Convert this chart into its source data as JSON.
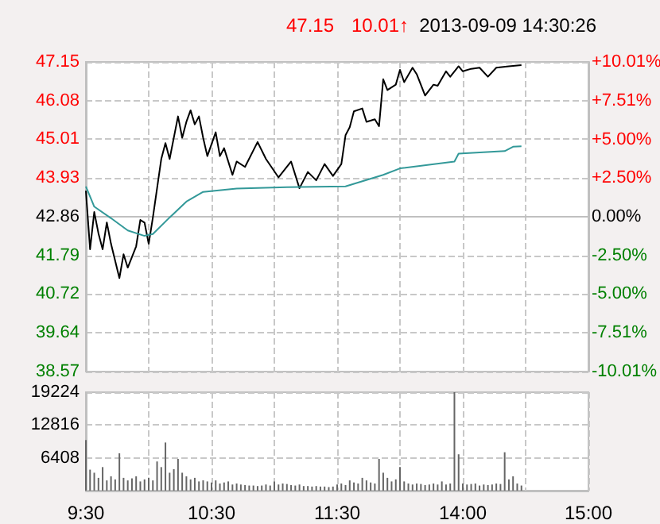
{
  "chart_data": [
    {
      "type": "line",
      "annotations": [
        "47.15",
        "10.01↑",
        "2013-09-09 14:30:26"
      ],
      "categories": [
        null,
        null,
        null,
        null,
        null,
        null,
        null,
        null,
        null,
        null,
        null,
        null,
        null,
        null,
        null,
        null,
        null,
        null,
        null,
        null,
        null,
        null,
        null,
        null,
        null,
        null,
        null,
        null,
        null,
        null,
        null,
        null,
        null,
        null,
        null,
        null,
        null,
        null,
        null,
        null,
        null,
        null,
        null,
        null,
        null,
        null,
        null,
        null,
        null,
        null,
        null,
        null,
        null,
        null,
        null,
        null,
        null,
        null,
        null,
        null,
        null,
        null,
        null,
        null,
        null,
        null,
        null,
        null,
        null,
        null,
        null,
        null,
        null,
        null,
        null,
        null,
        null,
        null,
        null,
        null,
        null,
        null,
        null,
        null,
        null,
        null,
        null,
        null,
        null,
        null,
        null,
        null,
        null,
        null,
        null,
        null,
        null,
        null,
        null,
        null,
        null,
        null,
        null,
        null,
        null,
        null,
        null,
        null,
        null,
        null,
        null,
        null,
        null,
        null,
        null,
        null,
        null,
        null,
        null,
        null,
        null
      ],
      "ylim": [
        38.57,
        47.15
      ],
      "yticks": [
        38.57,
        39.64,
        40.72,
        41.79,
        42.86,
        43.93,
        45.01,
        46.08,
        47.15
      ],
      "y2lim": [
        -10.01,
        10.01
      ],
      "y2ticks": [
        {
          "value": -10.01,
          "label": "-10.01%"
        },
        {
          "value": -7.51,
          "label": "-7.51%"
        },
        {
          "value": -5,
          "label": "-5.00%"
        },
        {
          "value": -2.5,
          "label": "-2.50%"
        },
        {
          "value": 0,
          "label": "0.00%"
        },
        {
          "value": 2.5,
          "label": "+2.50%"
        },
        {
          "value": 5,
          "label": "+5.00%"
        },
        {
          "value": 7.51,
          "label": "+7.51%"
        },
        {
          "value": 10.01,
          "label": "+10.01%"
        }
      ],
      "grid": true,
      "tick_labels": "y",
      "series": [
        {
          "color": "#000000",
          "values": [
            43.58,
            41.96,
            42.99,
            42.4,
            41.96,
            42.7,
            42.11,
            null,
            41.16,
            41.82,
            41.45,
            null,
            42.04,
            42.77,
            42.7,
            42.11,
            42.84,
            43.65,
            44.46,
            44.9,
            44.46,
            null,
            45.64,
            45.05,
            45.49,
            45.81,
            45.42,
            45.64,
            45.05,
            44.54,
            null,
            45.2,
            44.54,
            44.76,
            null,
            44.02,
            44.39,
            null,
            44.24,
            null,
            null,
            44.93,
            null,
            44.46,
            null,
            null,
            43.95,
            null,
            null,
            44.39,
            null,
            43.65,
            null,
            44.1,
            null,
            43.87,
            null,
            44.32,
            null,
            43.99,
            null,
            44.32,
            45.12,
            45.34,
            45.78,
            null,
            45.86,
            45.49,
            null,
            45.56,
            45.37,
            46.67,
            46.37,
            null,
            46.52,
            46.93,
            46.59,
            null,
            46.99,
            46.81,
            null,
            46.22,
            null,
            46.52,
            46.49,
            null,
            46.89,
            46.74,
            null,
            47.03,
            46.89,
            null,
            46.96,
            null,
            46.99,
            null,
            46.74,
            null,
            46.99,
            null,
            null,
            47.03,
            null,
            null,
            47.06,
            null,
            null,
            null,
            null,
            null,
            null,
            null,
            null,
            null,
            null,
            null,
            null,
            null,
            null,
            null,
            null
          ]
        },
        {
          "color": "#339999",
          "values": [
            43.7,
            null,
            43.14,
            null,
            null,
            null,
            42.82,
            null,
            null,
            null,
            42.48,
            null,
            null,
            null,
            42.33,
            null,
            42.38,
            null,
            null,
            null,
            42.84,
            null,
            null,
            null,
            43.28,
            null,
            null,
            null,
            43.55,
            null,
            null,
            null,
            null,
            null,
            null,
            null,
            43.64,
            null,
            null,
            null,
            null,
            null,
            null,
            null,
            null,
            null,
            null,
            null,
            43.68,
            null,
            null,
            null,
            null,
            null,
            null,
            null,
            null,
            null,
            null,
            null,
            null,
            null,
            43.7,
            null,
            null,
            null,
            null,
            null,
            null,
            null,
            null,
            44.02,
            null,
            null,
            null,
            44.2,
            null,
            null,
            null,
            null,
            null,
            null,
            null,
            null,
            null,
            null,
            null,
            null,
            44.39,
            44.61,
            null,
            null,
            null,
            null,
            null,
            null,
            null,
            null,
            null,
            null,
            44.68,
            null,
            44.8,
            null,
            44.81,
            null,
            null,
            null,
            null,
            null,
            null,
            null,
            null,
            null,
            null,
            null,
            null,
            null,
            null,
            null,
            null
          ]
        }
      ]
    },
    {
      "type": "bar",
      "color": "#666666",
      "categories": [
        "9:30",
        null,
        null,
        null,
        null,
        null,
        null,
        null,
        null,
        null,
        null,
        null,
        null,
        null,
        null,
        null,
        null,
        null,
        null,
        null,
        null,
        null,
        null,
        null,
        null,
        null,
        null,
        null,
        null,
        null,
        "10:30",
        null,
        null,
        null,
        null,
        null,
        null,
        null,
        null,
        null,
        null,
        null,
        null,
        null,
        null,
        null,
        null,
        null,
        null,
        null,
        null,
        null,
        null,
        null,
        null,
        null,
        null,
        null,
        null,
        null,
        "11:30",
        null,
        null,
        null,
        null,
        null,
        null,
        null,
        null,
        null,
        null,
        null,
        null,
        null,
        null,
        null,
        null,
        null,
        null,
        null,
        null,
        null,
        null,
        null,
        null,
        null,
        null,
        null,
        null,
        null,
        "14:00",
        null,
        null,
        null,
        null,
        null,
        null,
        null,
        null,
        null,
        null,
        null,
        null,
        null,
        null,
        null,
        null,
        null,
        null,
        null,
        null,
        null,
        null,
        null,
        null,
        null,
        null,
        null,
        null,
        null,
        "15:00"
      ],
      "ylim": [
        0,
        19224
      ],
      "yticks": [
        6408,
        12816,
        19224
      ],
      "grid": true,
      "values": [
        9900,
        4100,
        3500,
        2500,
        4600,
        2000,
        2800,
        2200,
        7300,
        2500,
        2000,
        2400,
        2800,
        1800,
        2200,
        2500,
        2000,
        5700,
        4600,
        9400,
        3500,
        4200,
        6200,
        3500,
        2800,
        2200,
        2500,
        1800,
        2000,
        1800,
        1600,
        2000,
        1400,
        1600,
        1800,
        1200,
        1400,
        1200,
        1100,
        1000,
        1000,
        900,
        1000,
        1200,
        1000,
        1800,
        1200,
        1400,
        1300,
        1100,
        1000,
        1200,
        900,
        900,
        800,
        900,
        800,
        800,
        700,
        800,
        1200,
        1400,
        1100,
        2000,
        1600,
        1400,
        2500,
        2000,
        1600,
        1400,
        6200,
        3500,
        2500,
        1800,
        2200,
        4600,
        1800,
        1400,
        1200,
        1400,
        1300,
        1100,
        1200,
        1400,
        1200,
        1800,
        1200,
        1400,
        19224,
        7100,
        1400,
        1200,
        1300,
        1400,
        1000,
        1200,
        1100,
        1200,
        1400,
        1300,
        7500,
        2200,
        2800,
        1400,
        1000,
        null,
        null,
        null,
        null,
        null,
        null,
        null,
        null,
        null,
        null,
        null,
        null,
        null,
        null,
        null,
        null
      ]
    }
  ]
}
